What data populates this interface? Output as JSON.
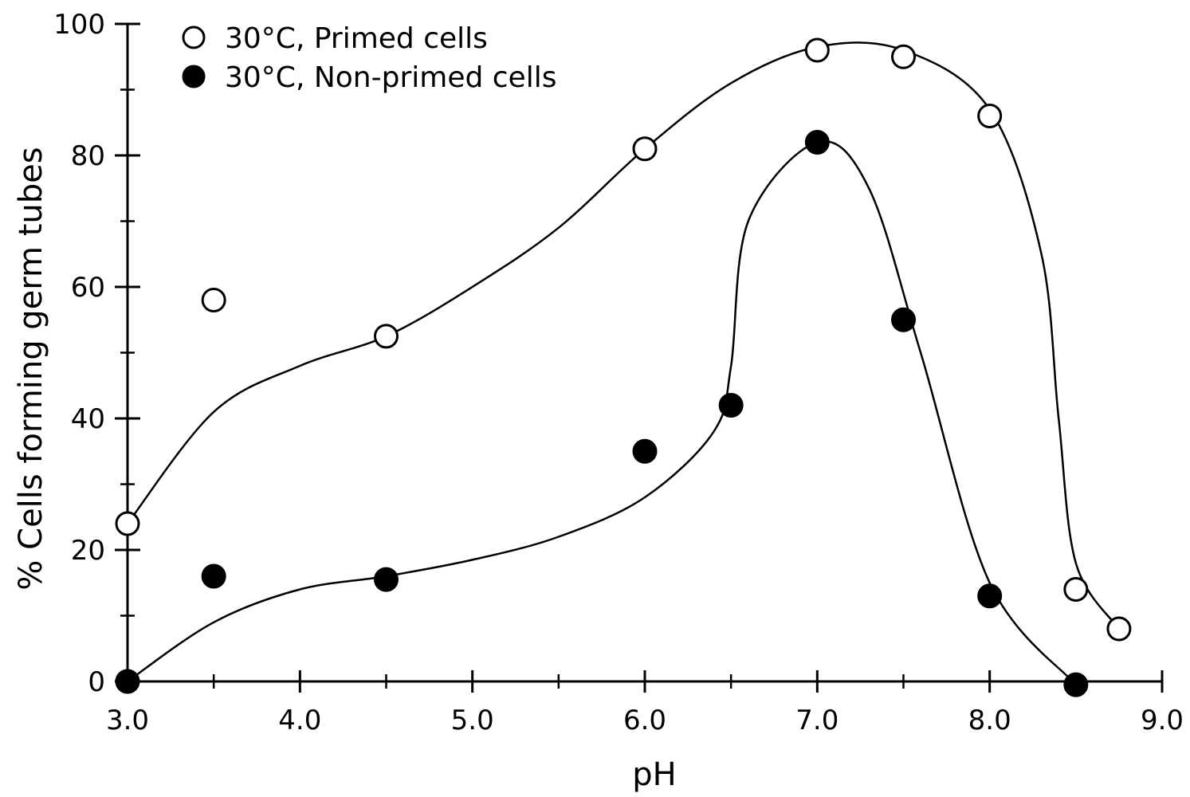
{
  "chart_data": {
    "type": "scatter",
    "xlabel": "pH",
    "ylabel": "% Cells forming germ tubes",
    "xlim": [
      3.0,
      9.0
    ],
    "ylim": [
      0,
      100
    ],
    "x_major_ticks": [
      3.0,
      4.0,
      5.0,
      6.0,
      7.0,
      8.0,
      9.0
    ],
    "x_tick_labels": [
      "3.0",
      "4.0",
      "5.0",
      "6.0",
      "7.0",
      "8.0",
      "9.0"
    ],
    "x_minor_ticks": [
      3.5,
      4.5,
      5.5,
      6.5,
      7.5,
      8.5
    ],
    "y_major_ticks": [
      0,
      20,
      40,
      60,
      80,
      100
    ],
    "y_tick_labels": [
      "0",
      "20",
      "40",
      "60",
      "80",
      "100"
    ],
    "y_minor_ticks": [
      10,
      30,
      50,
      70,
      90
    ],
    "grid": false,
    "legend_position": "top-left",
    "series": [
      {
        "name": "30°C, Primed cells",
        "marker": "open-circle",
        "color": "#000000",
        "x": [
          3.0,
          3.5,
          4.5,
          6.0,
          7.0,
          7.5,
          8.0,
          8.5,
          8.75
        ],
        "y": [
          24,
          58,
          52.5,
          81,
          96,
          95,
          86,
          14,
          8
        ],
        "curve": [
          [
            3.0,
            24
          ],
          [
            3.5,
            41
          ],
          [
            4.0,
            48
          ],
          [
            4.5,
            52.5
          ],
          [
            5.0,
            60
          ],
          [
            5.5,
            69
          ],
          [
            6.0,
            81
          ],
          [
            6.5,
            91
          ],
          [
            7.0,
            96.5
          ],
          [
            7.5,
            96
          ],
          [
            8.0,
            87
          ],
          [
            8.3,
            65
          ],
          [
            8.4,
            40
          ],
          [
            8.5,
            18
          ],
          [
            8.75,
            8
          ]
        ]
      },
      {
        "name": "30°C, Non-primed cells",
        "marker": "filled-circle",
        "color": "#000000",
        "x": [
          3.0,
          3.5,
          4.5,
          6.0,
          6.5,
          7.0,
          7.5,
          8.0,
          8.5
        ],
        "y": [
          0,
          16,
          15.5,
          35,
          42,
          82,
          55,
          13,
          -0.5
        ],
        "curve": [
          [
            3.0,
            0
          ],
          [
            3.5,
            9
          ],
          [
            4.0,
            14
          ],
          [
            4.5,
            16
          ],
          [
            5.0,
            18.5
          ],
          [
            5.5,
            22
          ],
          [
            6.0,
            28
          ],
          [
            6.4,
            38
          ],
          [
            6.5,
            48
          ],
          [
            6.6,
            70
          ],
          [
            7.0,
            82
          ],
          [
            7.3,
            75
          ],
          [
            7.6,
            50
          ],
          [
            8.0,
            15
          ],
          [
            8.5,
            -0.5
          ]
        ]
      }
    ]
  }
}
